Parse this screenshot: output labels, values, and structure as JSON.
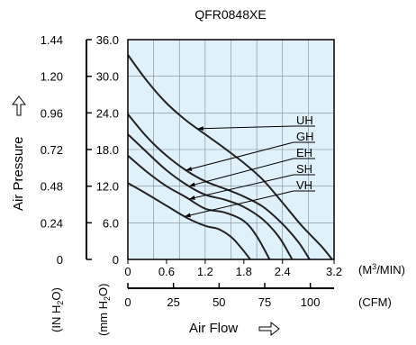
{
  "chart_data": {
    "type": "line",
    "title": "QFR0848XE",
    "xlabel": "Air Flow",
    "ylabel": "Air Pressure",
    "x_ticks": [
      "0",
      "0.6",
      "1.2",
      "1.8",
      "2.4",
      "3.2"
    ],
    "x_unit": "(M3/MIN)",
    "x_unit_base": "(M",
    "x_unit_sup": "3",
    "x_unit_end": "/MIN)",
    "cfm_ticks": [
      "0",
      "25",
      "50",
      "75",
      "100"
    ],
    "cfm_unit": "(CFM)",
    "y_inh2o_ticks": [
      "0",
      "0.24",
      "0.48",
      "0.72",
      "0.96",
      "1.20",
      "1.44"
    ],
    "y_inh2o_unit": "(IN H2O)",
    "y_inh2o_unit_a": "(IN H",
    "y_inh2o_unit_sub": "2",
    "y_inh2o_unit_b": "O)",
    "y_mmh2o_ticks": [
      "0",
      "6.0",
      "12.0",
      "18.0",
      "24.0",
      "30.0",
      "36.0"
    ],
    "y_mmh2o_unit": "(mm H2O)",
    "y_mmh2o_unit_a": "(mm H",
    "y_mmh2o_unit_sub": "2",
    "y_mmh2o_unit_b": "O)",
    "xlim": [
      0,
      3.2
    ],
    "ylim": [
      0,
      36
    ],
    "grid": true,
    "background_color": "#dff1fa",
    "line_color": "#222222",
    "series": [
      {
        "name": "UH",
        "x": [
          0,
          0.3,
          0.6,
          0.9,
          1.2,
          1.5,
          1.8,
          2.1,
          2.4,
          2.7,
          3.0,
          3.17
        ],
        "y": [
          33.5,
          29.2,
          25.6,
          22.8,
          20.5,
          18.2,
          15.8,
          13.0,
          9.3,
          5.5,
          2.2,
          0
        ]
      },
      {
        "name": "GH",
        "x": [
          0,
          0.3,
          0.6,
          0.9,
          1.2,
          1.5,
          1.8,
          2.1,
          2.4,
          2.65,
          2.82
        ],
        "y": [
          23.8,
          20.0,
          17.0,
          14.6,
          12.8,
          11.6,
          10.3,
          8.6,
          5.8,
          2.8,
          0
        ]
      },
      {
        "name": "EH",
        "x": [
          0,
          0.3,
          0.6,
          0.9,
          1.2,
          1.5,
          1.8,
          2.1,
          2.35,
          2.55
        ],
        "y": [
          20.5,
          17.5,
          14.6,
          12.3,
          10.6,
          9.8,
          8.6,
          6.5,
          3.6,
          0
        ]
      },
      {
        "name": "SH",
        "x": [
          0,
          0.3,
          0.6,
          0.9,
          1.2,
          1.5,
          1.8,
          2.0,
          2.2
        ],
        "y": [
          17.0,
          14.3,
          12.0,
          10.2,
          8.3,
          7.7,
          6.3,
          3.8,
          0
        ]
      },
      {
        "name": "VH",
        "x": [
          0,
          0.3,
          0.6,
          0.9,
          1.2,
          1.4,
          1.6,
          1.75,
          1.9
        ],
        "y": [
          12.5,
          10.7,
          8.8,
          6.9,
          5.5,
          5.0,
          3.7,
          2.0,
          0
        ]
      }
    ],
    "legend": [
      "UH",
      "GH",
      "EH",
      "SH",
      "VH"
    ]
  }
}
